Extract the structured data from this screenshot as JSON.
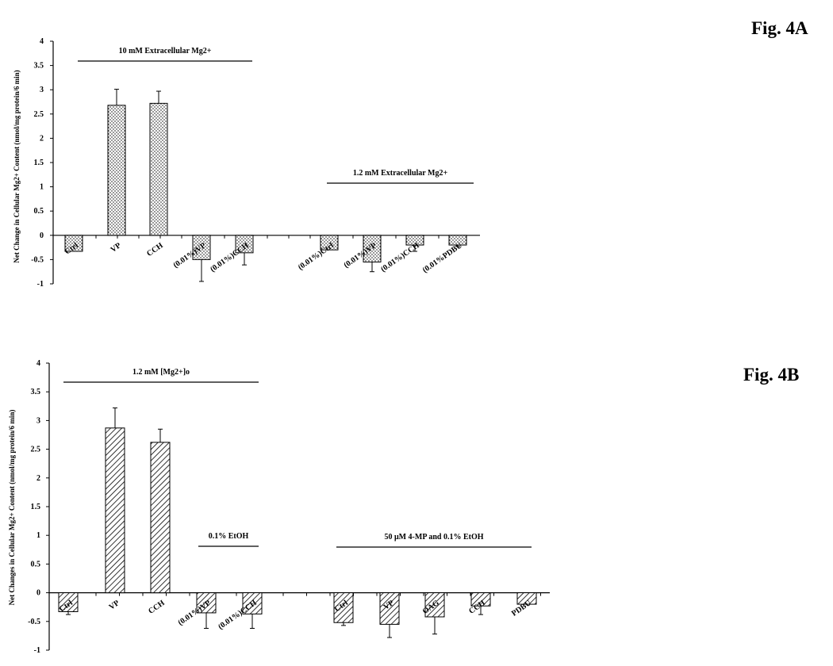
{
  "chart_data": [
    {
      "type": "bar",
      "fig_label": "Fig. 4A",
      "ylabel": "Net Change in Cellular Mg2+ Content (nmol/mg protein/6 min)",
      "ylim": [
        -1,
        4
      ],
      "yticks": [
        "4",
        "3.5",
        "3",
        "2.5",
        "2",
        "1.5",
        "1",
        "0.5",
        "0",
        "-0.5",
        "-1"
      ],
      "pattern": "dots",
      "categories": [
        "Ctrl",
        "VP",
        "CCH",
        "(0.01%)VP",
        "(0.01%)CCH",
        "(0.01%)Ctrl",
        "(0.01%)VP",
        "(0.01%)CCH",
        "(0.01%PDBU"
      ],
      "values": [
        -0.33,
        2.68,
        2.72,
        -0.5,
        -0.36,
        -0.3,
        -0.55,
        -0.2,
        -0.2
      ],
      "errors": [
        0,
        0.33,
        0.25,
        0.45,
        0.25,
        0,
        0.2,
        0.13,
        0.03
      ],
      "annotations": [
        {
          "text": "10 mM Extracellular Mg2+",
          "from": 0,
          "to": 4
        },
        {
          "text": "1.2 mM Extracellular Mg2+",
          "from": 5,
          "to": 8
        }
      ]
    },
    {
      "type": "bar",
      "fig_label": "Fig. 4B",
      "ylabel": "Net Changes in Cellular Mg2+ Content (nmol/mg protein/6 min)",
      "ylim": [
        -1,
        4
      ],
      "yticks": [
        "4",
        "3.5",
        "3",
        "2.5",
        "2",
        "1.5",
        "1",
        "0.5",
        "0",
        "-0.5",
        "-1"
      ],
      "pattern": "hatch",
      "categories": [
        "Ctrl",
        "VP",
        "CCH",
        "(0.01%)VP",
        "(0.01%)CCH",
        "Ctrl",
        "VP",
        "OAG",
        "CCH",
        "PDBU"
      ],
      "values": [
        -0.33,
        2.87,
        2.62,
        -0.35,
        -0.37,
        -0.52,
        -0.55,
        -0.42,
        -0.23,
        -0.2
      ],
      "errors": [
        0.05,
        0.35,
        0.23,
        0.27,
        0.25,
        0.05,
        0.23,
        0.3,
        0.15,
        0
      ],
      "annotations": [
        {
          "text": "1.2 mM [Mg2+]o",
          "from": 0,
          "to": 4
        },
        {
          "text": "0.1% EtOH",
          "from": 3,
          "to": 4
        },
        {
          "text": "50 μM 4-MP and 0.1% EtOH",
          "from": 5,
          "to": 9
        }
      ]
    }
  ]
}
